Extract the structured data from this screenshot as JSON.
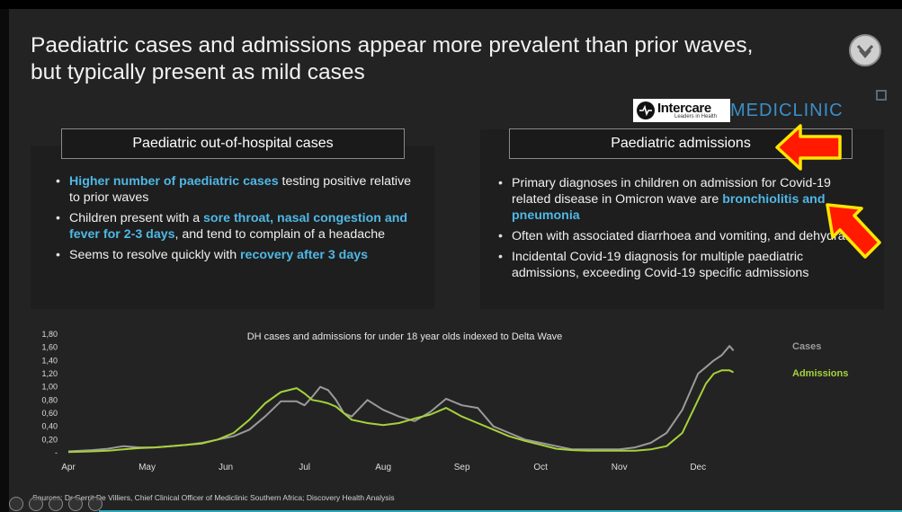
{
  "slide": {
    "title_line1": "Paediatric cases and admissions appear more prevalent than prior waves,",
    "title_line2": "but typically present as mild cases",
    "logo_intercare": "Intercare",
    "logo_intercare_tagline": "Leaders in Health",
    "logo_mediclinic": "MEDICLINIC",
    "source": "Sources: Dr Gerrit De Villiers, Chief Clinical Officer of Mediclinic Southern Africa; Discovery Health Analysis"
  },
  "left_panel": {
    "title": "Paediatric out-of-hospital cases",
    "bullets": [
      {
        "hl": "Higher number of paediatric cases",
        "rest": " testing positive relative to prior waves"
      },
      {
        "pre": "Children present with a ",
        "hl": "sore throat, nasal congestion and fever for 2-3 days",
        "rest": ", and tend to complain of a headache"
      },
      {
        "pre": "Seems to resolve quickly with ",
        "hl": "recovery after 3 days"
      }
    ]
  },
  "right_panel": {
    "title": "Paediatric admissions",
    "bullets": [
      {
        "pre": "Primary diagnoses in children on admission for Covid-19 related disease in Omicron wave are ",
        "hl": "bronchiolitis and pneumonia"
      },
      {
        "pre": "Often with associated diarrhoea and vomiting, and dehydration"
      },
      {
        "pre": "Incidental Covid-19 diagnosis for multiple paediatric admissions, exceeding Covid-19 specific admissions"
      }
    ]
  },
  "colors": {
    "cases": "#9a9a9a",
    "admissions": "#a6d13c",
    "highlight": "#4fb8e6",
    "arrow_fill": "#ff1a00",
    "arrow_outline": "#ffe600"
  },
  "chart_data": {
    "type": "line",
    "title": "DH cases and admissions for under 18 year olds indexed to Delta Wave",
    "x_ticks": [
      "Apr",
      "May",
      "Jun",
      "Jul",
      "Aug",
      "Sep",
      "Oct",
      "Nov",
      "Dec"
    ],
    "y_ticks": [
      "-",
      "0,20",
      "0,40",
      "0,60",
      "0,80",
      "1,00",
      "1,20",
      "1,40",
      "1,60",
      "1,80"
    ],
    "ylim": [
      0,
      1.8
    ],
    "xlim": [
      0,
      8.5
    ],
    "grid": false,
    "legend_position": "right",
    "series": [
      {
        "name": "Cases",
        "x": [
          0,
          0.3,
          0.5,
          0.7,
          0.9,
          1.1,
          1.3,
          1.5,
          1.7,
          1.9,
          2.1,
          2.3,
          2.5,
          2.7,
          2.9,
          3.0,
          3.1,
          3.2,
          3.3,
          3.4,
          3.5,
          3.6,
          3.8,
          4.0,
          4.2,
          4.4,
          4.6,
          4.8,
          5.0,
          5.2,
          5.4,
          5.6,
          5.8,
          6.0,
          6.2,
          6.4,
          6.6,
          6.8,
          7.0,
          7.2,
          7.4,
          7.6,
          7.8,
          8.0,
          8.1,
          8.2,
          8.3,
          8.4,
          8.45
        ],
        "values": [
          0.02,
          0.04,
          0.06,
          0.1,
          0.08,
          0.08,
          0.1,
          0.12,
          0.15,
          0.2,
          0.25,
          0.35,
          0.55,
          0.78,
          0.78,
          0.72,
          0.85,
          1.0,
          0.95,
          0.8,
          0.6,
          0.55,
          0.8,
          0.65,
          0.55,
          0.48,
          0.62,
          0.82,
          0.72,
          0.68,
          0.4,
          0.3,
          0.2,
          0.15,
          0.1,
          0.05,
          0.05,
          0.05,
          0.05,
          0.08,
          0.15,
          0.3,
          0.65,
          1.2,
          1.3,
          1.4,
          1.48,
          1.62,
          1.55
        ]
      },
      {
        "name": "Admissions",
        "x": [
          0,
          0.3,
          0.5,
          0.7,
          0.9,
          1.1,
          1.3,
          1.5,
          1.7,
          1.9,
          2.1,
          2.3,
          2.5,
          2.7,
          2.9,
          3.0,
          3.1,
          3.2,
          3.3,
          3.4,
          3.5,
          3.6,
          3.8,
          4.0,
          4.2,
          4.4,
          4.6,
          4.8,
          5.0,
          5.2,
          5.4,
          5.6,
          5.8,
          6.0,
          6.2,
          6.4,
          6.6,
          6.8,
          7.0,
          7.2,
          7.4,
          7.6,
          7.8,
          8.0,
          8.1,
          8.2,
          8.3,
          8.4,
          8.45
        ],
        "values": [
          0.01,
          0.02,
          0.03,
          0.05,
          0.07,
          0.08,
          0.1,
          0.12,
          0.14,
          0.2,
          0.3,
          0.5,
          0.75,
          0.92,
          0.98,
          0.9,
          0.8,
          0.78,
          0.75,
          0.7,
          0.6,
          0.5,
          0.45,
          0.42,
          0.45,
          0.52,
          0.58,
          0.68,
          0.55,
          0.45,
          0.35,
          0.25,
          0.18,
          0.12,
          0.06,
          0.04,
          0.03,
          0.03,
          0.03,
          0.03,
          0.05,
          0.1,
          0.3,
          0.8,
          1.05,
          1.2,
          1.25,
          1.25,
          1.22
        ]
      }
    ]
  }
}
